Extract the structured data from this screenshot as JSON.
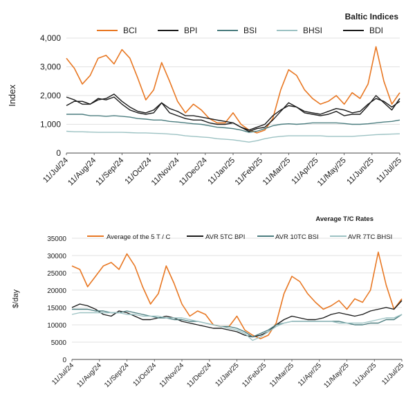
{
  "chart_data": [
    {
      "type": "line",
      "title": "Baltic Indices",
      "ylabel": "Index",
      "xlabel": "",
      "ylim": [
        0,
        4000
      ],
      "yticks": [
        "0",
        "1,000",
        "2,000",
        "3,000",
        "4,000"
      ],
      "ytick_values": [
        0,
        1000,
        2000,
        3000,
        4000
      ],
      "x_tick_labels": [
        "11/Jul/24",
        "11/Aug/24",
        "11/Sep/24",
        "11/Oct/24",
        "11/Nov/24",
        "11/Dec/24",
        "11/Jan/25",
        "11/Feb/25",
        "11/Mar/25",
        "11/Apr/25",
        "11/May/25",
        "11/Jun/25",
        "11/Jul/25"
      ],
      "grid": "horizontal",
      "legend_position": "top",
      "series": [
        {
          "name": "BCI",
          "color": "#e87722",
          "width": 1.6,
          "values": [
            3300,
            2950,
            2400,
            2700,
            3300,
            3400,
            3100,
            3600,
            3300,
            2600,
            1850,
            2200,
            3150,
            2500,
            1800,
            1400,
            1700,
            1500,
            1200,
            1050,
            1050,
            1400,
            1000,
            800,
            700,
            800,
            1200,
            2200,
            2900,
            2700,
            2200,
            1900,
            1700,
            1800,
            2000,
            1700,
            2100,
            1900,
            2400,
            3700,
            2500,
            1700,
            2100
          ]
        },
        {
          "name": "BPI",
          "color": "#1a1a1a",
          "width": 1.4,
          "values": [
            1650,
            1800,
            1800,
            1700,
            1850,
            1900,
            2050,
            1800,
            1600,
            1450,
            1400,
            1500,
            1750,
            1550,
            1450,
            1300,
            1300,
            1250,
            1200,
            1150,
            1100,
            1050,
            900,
            800,
            900,
            1000,
            1300,
            1500,
            1650,
            1600,
            1450,
            1400,
            1350,
            1450,
            1550,
            1500,
            1400,
            1450,
            1700,
            1900,
            1800,
            1600,
            1800
          ]
        },
        {
          "name": "BSI",
          "color": "#4a7c7e",
          "width": 1.4,
          "values": [
            1350,
            1350,
            1350,
            1300,
            1300,
            1280,
            1300,
            1280,
            1250,
            1200,
            1180,
            1150,
            1150,
            1100,
            1080,
            1050,
            1020,
            1000,
            950,
            900,
            880,
            850,
            800,
            720,
            760,
            850,
            950,
            1000,
            1020,
            1000,
            1020,
            1050,
            1050,
            1050,
            1050,
            1030,
            1000,
            1000,
            1020,
            1050,
            1080,
            1100,
            1150
          ]
        },
        {
          "name": "BHSI",
          "color": "#9cc2c3",
          "width": 1.4,
          "values": [
            760,
            740,
            740,
            730,
            720,
            720,
            720,
            720,
            710,
            700,
            700,
            690,
            680,
            660,
            640,
            600,
            580,
            560,
            540,
            500,
            480,
            460,
            420,
            380,
            430,
            500,
            550,
            580,
            600,
            600,
            600,
            600,
            600,
            580,
            580,
            580,
            580,
            600,
            620,
            640,
            650,
            660,
            670
          ]
        },
        {
          "name": "BDI",
          "color": "#1a1a1a",
          "width": 1.4,
          "values": [
            1950,
            1850,
            1700,
            1700,
            1900,
            1850,
            1950,
            1700,
            1500,
            1400,
            1350,
            1400,
            1750,
            1400,
            1300,
            1200,
            1150,
            1150,
            1050,
            1000,
            1000,
            1050,
            900,
            750,
            850,
            900,
            1150,
            1450,
            1750,
            1600,
            1400,
            1350,
            1300,
            1350,
            1450,
            1300,
            1350,
            1350,
            1650,
            2000,
            1750,
            1500,
            1900
          ]
        }
      ]
    },
    {
      "type": "line",
      "title": "Average T/C Rates",
      "ylabel": "$/day",
      "xlabel": "",
      "ylim": [
        0,
        35000
      ],
      "yticks": [
        "0",
        "5000",
        "10000",
        "15000",
        "20000",
        "25000",
        "30000",
        "35000"
      ],
      "ytick_values": [
        0,
        5000,
        10000,
        15000,
        20000,
        25000,
        30000,
        35000
      ],
      "x_tick_labels": [
        "11/Jul/24",
        "11/Aug/24",
        "11/Sep/24",
        "11/Oct/24",
        "11/Nov/24",
        "11/Dec/24",
        "11/Jan/25",
        "11/Feb/25",
        "11/Mar/25",
        "11/Apr/25",
        "11/May/25",
        "11/Jun/25",
        "11/Jul/25"
      ],
      "grid": "horizontal",
      "legend_position": "top",
      "series": [
        {
          "name": "Average of the 5 T / C",
          "color": "#e87722",
          "width": 1.6,
          "values": [
            27000,
            26000,
            21000,
            24000,
            27000,
            28000,
            26000,
            30500,
            27000,
            21000,
            16000,
            19000,
            27000,
            22000,
            16000,
            12500,
            14000,
            13000,
            10000,
            9500,
            9500,
            12500,
            8500,
            7000,
            6000,
            7000,
            10500,
            19000,
            24000,
            22500,
            19000,
            16500,
            14500,
            15500,
            17000,
            14500,
            17500,
            16500,
            20000,
            31000,
            21500,
            14500,
            17500
          ]
        },
        {
          "name": "AVR 5TC BPI",
          "color": "#1a1a1a",
          "width": 1.4,
          "values": [
            15000,
            16000,
            15500,
            14500,
            13000,
            12500,
            14000,
            13500,
            12500,
            11500,
            11500,
            12000,
            12500,
            12000,
            11000,
            10500,
            10000,
            9500,
            9000,
            9000,
            8500,
            8000,
            7000,
            6500,
            7000,
            8000,
            10000,
            11500,
            12500,
            12000,
            11500,
            11500,
            12000,
            13000,
            13500,
            13000,
            12500,
            13000,
            14000,
            14500,
            15000,
            14500,
            17000
          ]
        },
        {
          "name": "AVR 10TC BSI",
          "color": "#4a7c7e",
          "width": 1.4,
          "values": [
            14500,
            14500,
            14500,
            14000,
            14000,
            13500,
            13500,
            14000,
            13500,
            13000,
            12500,
            12000,
            12000,
            11500,
            11500,
            11000,
            11000,
            10500,
            10000,
            9500,
            9500,
            9000,
            8000,
            6500,
            7500,
            8500,
            10000,
            10500,
            11000,
            11000,
            11000,
            11000,
            11000,
            11000,
            11000,
            10500,
            10000,
            10000,
            10500,
            10500,
            11500,
            11500,
            13000
          ]
        },
        {
          "name": "AVR 7TC BHSI",
          "color": "#9cc2c3",
          "width": 1.4,
          "values": [
            13000,
            13500,
            13500,
            13500,
            13500,
            13500,
            13500,
            13000,
            13000,
            12500,
            12500,
            12500,
            12000,
            12000,
            12000,
            11500,
            11000,
            10500,
            10000,
            9500,
            9000,
            8500,
            7500,
            5500,
            6500,
            8000,
            9500,
            10500,
            11000,
            11000,
            11000,
            11000,
            11000,
            11000,
            10500,
            10500,
            10500,
            10500,
            11000,
            11500,
            12000,
            12000,
            13000
          ]
        }
      ]
    }
  ]
}
